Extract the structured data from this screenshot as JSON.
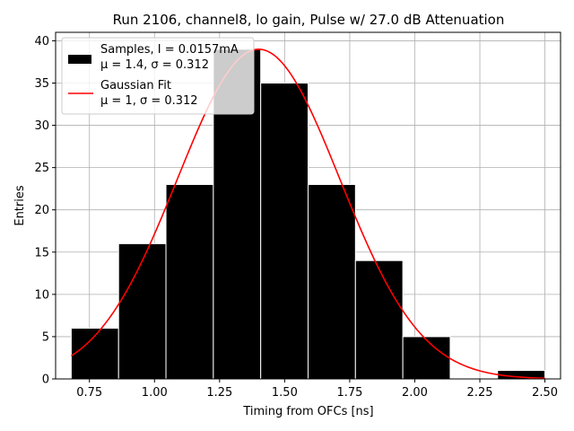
{
  "chart_data": {
    "type": "bar",
    "title": "Run 2106, channel8, lo gain, Pulse w/ 27.0 dB Attenuation",
    "xlabel": "Timing from OFCs [ns]",
    "ylabel": "Entries",
    "xlim": [
      0.62,
      2.56
    ],
    "ylim": [
      0,
      41
    ],
    "xticks": [
      0.75,
      1.0,
      1.25,
      1.5,
      1.75,
      2.0,
      2.25,
      2.5
    ],
    "xtick_labels": [
      "0.75",
      "1.00",
      "1.25",
      "1.50",
      "1.75",
      "2.00",
      "2.25",
      "2.50"
    ],
    "yticks": [
      0,
      5,
      10,
      15,
      20,
      25,
      30,
      35,
      40
    ],
    "ytick_labels": [
      "0",
      "5",
      "10",
      "15",
      "20",
      "25",
      "30",
      "35",
      "40"
    ],
    "grid": true,
    "legend_position": "top-left",
    "bins": {
      "edges": [
        0.68,
        0.862,
        1.044,
        1.226,
        1.408,
        1.59,
        1.772,
        1.954,
        2.136,
        2.318,
        2.5
      ],
      "counts": [
        6,
        16,
        23,
        39,
        35,
        23,
        14,
        5,
        0,
        1
      ]
    },
    "fit": {
      "x_range": [
        0.68,
        2.5
      ],
      "amplitude": 39,
      "mean": 1.4,
      "sigma": 0.312
    },
    "colors": {
      "bars": "#000000",
      "bar_edge": "#ffffff",
      "fit": "#ff0000",
      "grid": "#b0b0b0"
    },
    "legend": [
      {
        "line1": "Samples, I = 0.0157mA",
        "line2": "μ = 1.4, σ = 0.312"
      },
      {
        "line1": "Gaussian Fit",
        "line2": "μ = 1, σ = 0.312"
      }
    ]
  }
}
